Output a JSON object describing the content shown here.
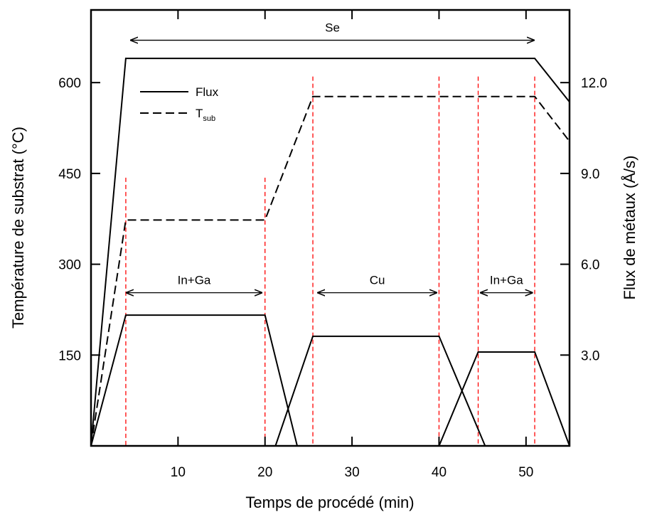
{
  "chart_data": {
    "type": "line",
    "title": "",
    "xlabel": "Temps de procédé (min)",
    "ylabel": "Température de substrat (°C)",
    "y2label": "Flux de métaux (Å/s)",
    "xlim": [
      0,
      55
    ],
    "ylim": [
      0,
      720
    ],
    "y2lim": [
      0,
      14.4
    ],
    "x_ticks": [
      10,
      20,
      30,
      40,
      50
    ],
    "x_tick_labels": [
      "10",
      "20",
      "30",
      "40",
      "50"
    ],
    "y_ticks": [
      150,
      300,
      450,
      600
    ],
    "y_tick_labels": [
      "150",
      "300",
      "450",
      "600"
    ],
    "y2_ticks": [
      3.0,
      6.0,
      9.0,
      12.0
    ],
    "y2_tick_labels": [
      "3.0",
      "6.0",
      "9.0",
      "12.0"
    ],
    "grid": false,
    "legend": {
      "position": "top-left",
      "entries": [
        {
          "label": "Flux",
          "style": "solid"
        },
        {
          "label": "T",
          "sub": "sub",
          "style": "dashed"
        }
      ]
    },
    "series": [
      {
        "key": "se_flux",
        "style": "solid",
        "axis": "left",
        "x": [
          0,
          4,
          51,
          55
        ],
        "y": [
          0,
          640,
          640,
          568
        ]
      },
      {
        "key": "tsub",
        "style": "dashed",
        "axis": "left",
        "x": [
          0,
          4,
          20,
          25.5,
          51,
          55
        ],
        "y": [
          0,
          373,
          373,
          577,
          577,
          503
        ]
      },
      {
        "key": "in_ga_flux_1",
        "style": "solid",
        "axis": "left",
        "x": [
          0,
          4,
          20,
          23.7
        ],
        "y": [
          0,
          216,
          216,
          0
        ]
      },
      {
        "key": "cu_flux",
        "style": "solid",
        "axis": "left",
        "x": [
          21.2,
          25.5,
          40,
          45.3
        ],
        "y": [
          0,
          181,
          181,
          0
        ]
      },
      {
        "key": "in_ga_flux_2",
        "style": "solid",
        "axis": "left",
        "x": [
          40,
          44.5,
          51,
          55
        ],
        "y": [
          0,
          155,
          155,
          0
        ]
      }
    ],
    "vertical_markers": [
      {
        "x": 4,
        "y_top": 443,
        "color": "#ff0000",
        "style": "dashed"
      },
      {
        "x": 20,
        "y_top": 443,
        "color": "#ff0000",
        "style": "dashed"
      },
      {
        "x": 25.5,
        "y_top": 610,
        "color": "#ff0000",
        "style": "dashed"
      },
      {
        "x": 40,
        "y_top": 610,
        "color": "#ff0000",
        "style": "dashed"
      },
      {
        "x": 44.5,
        "y_top": 610,
        "color": "#ff0000",
        "style": "dashed"
      },
      {
        "x": 51,
        "y_top": 610,
        "color": "#ff0000",
        "style": "dashed"
      }
    ],
    "annotations": [
      {
        "label": "Se",
        "x_start": 4.5,
        "x_end": 51,
        "y": 670
      },
      {
        "label": "In+Ga",
        "x_start": 4,
        "x_end": 19.7,
        "y": 253
      },
      {
        "label": "Cu",
        "x_start": 26,
        "x_end": 39.8,
        "y": 253
      },
      {
        "label": "In+Ga",
        "x_start": 44.7,
        "x_end": 50.8,
        "y": 253
      }
    ]
  }
}
